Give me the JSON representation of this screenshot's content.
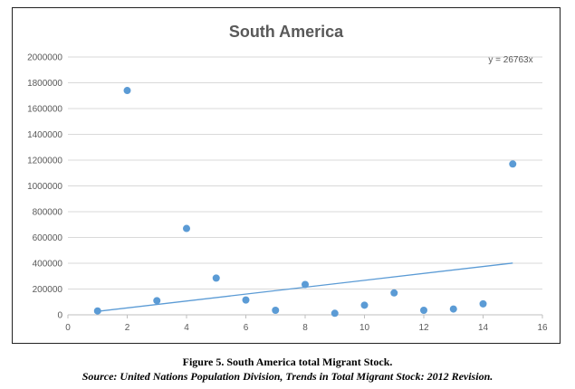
{
  "chart_data": {
    "type": "scatter",
    "title": "South America",
    "xlabel": "",
    "ylabel": "",
    "xlim": [
      0,
      16
    ],
    "ylim": [
      0,
      2000000
    ],
    "xticks": [
      0,
      2,
      4,
      6,
      8,
      10,
      12,
      14,
      16
    ],
    "yticks": [
      0,
      200000,
      400000,
      600000,
      800000,
      1000000,
      1200000,
      1400000,
      1600000,
      1800000,
      2000000
    ],
    "grid": "horizontal",
    "points": [
      {
        "x": 1,
        "y": 30000
      },
      {
        "x": 2,
        "y": 1740000
      },
      {
        "x": 3,
        "y": 110000
      },
      {
        "x": 4,
        "y": 670000
      },
      {
        "x": 5,
        "y": 285000
      },
      {
        "x": 6,
        "y": 115000
      },
      {
        "x": 7,
        "y": 35000
      },
      {
        "x": 8,
        "y": 235000
      },
      {
        "x": 9,
        "y": 12000
      },
      {
        "x": 10,
        "y": 75000
      },
      {
        "x": 11,
        "y": 170000
      },
      {
        "x": 12,
        "y": 35000
      },
      {
        "x": 13,
        "y": 45000
      },
      {
        "x": 14,
        "y": 85000
      },
      {
        "x": 15,
        "y": 1170000
      }
    ],
    "trendline": {
      "slope": 26763,
      "x_range": [
        1,
        15
      ],
      "label": "y = 26763x"
    },
    "colors": {
      "point": "#5b9bd5",
      "trendline": "#5b9bd5",
      "title": "#595959",
      "tick_label": "#595959",
      "grid": "#d9d9d9",
      "axis": "#bfbfbf"
    }
  },
  "caption": {
    "figure_title": "Figure 5. South America total Migrant Stock.",
    "source": "Source: United Nations Population Division, Trends in Total Migrant Stock: 2012 Revision."
  }
}
